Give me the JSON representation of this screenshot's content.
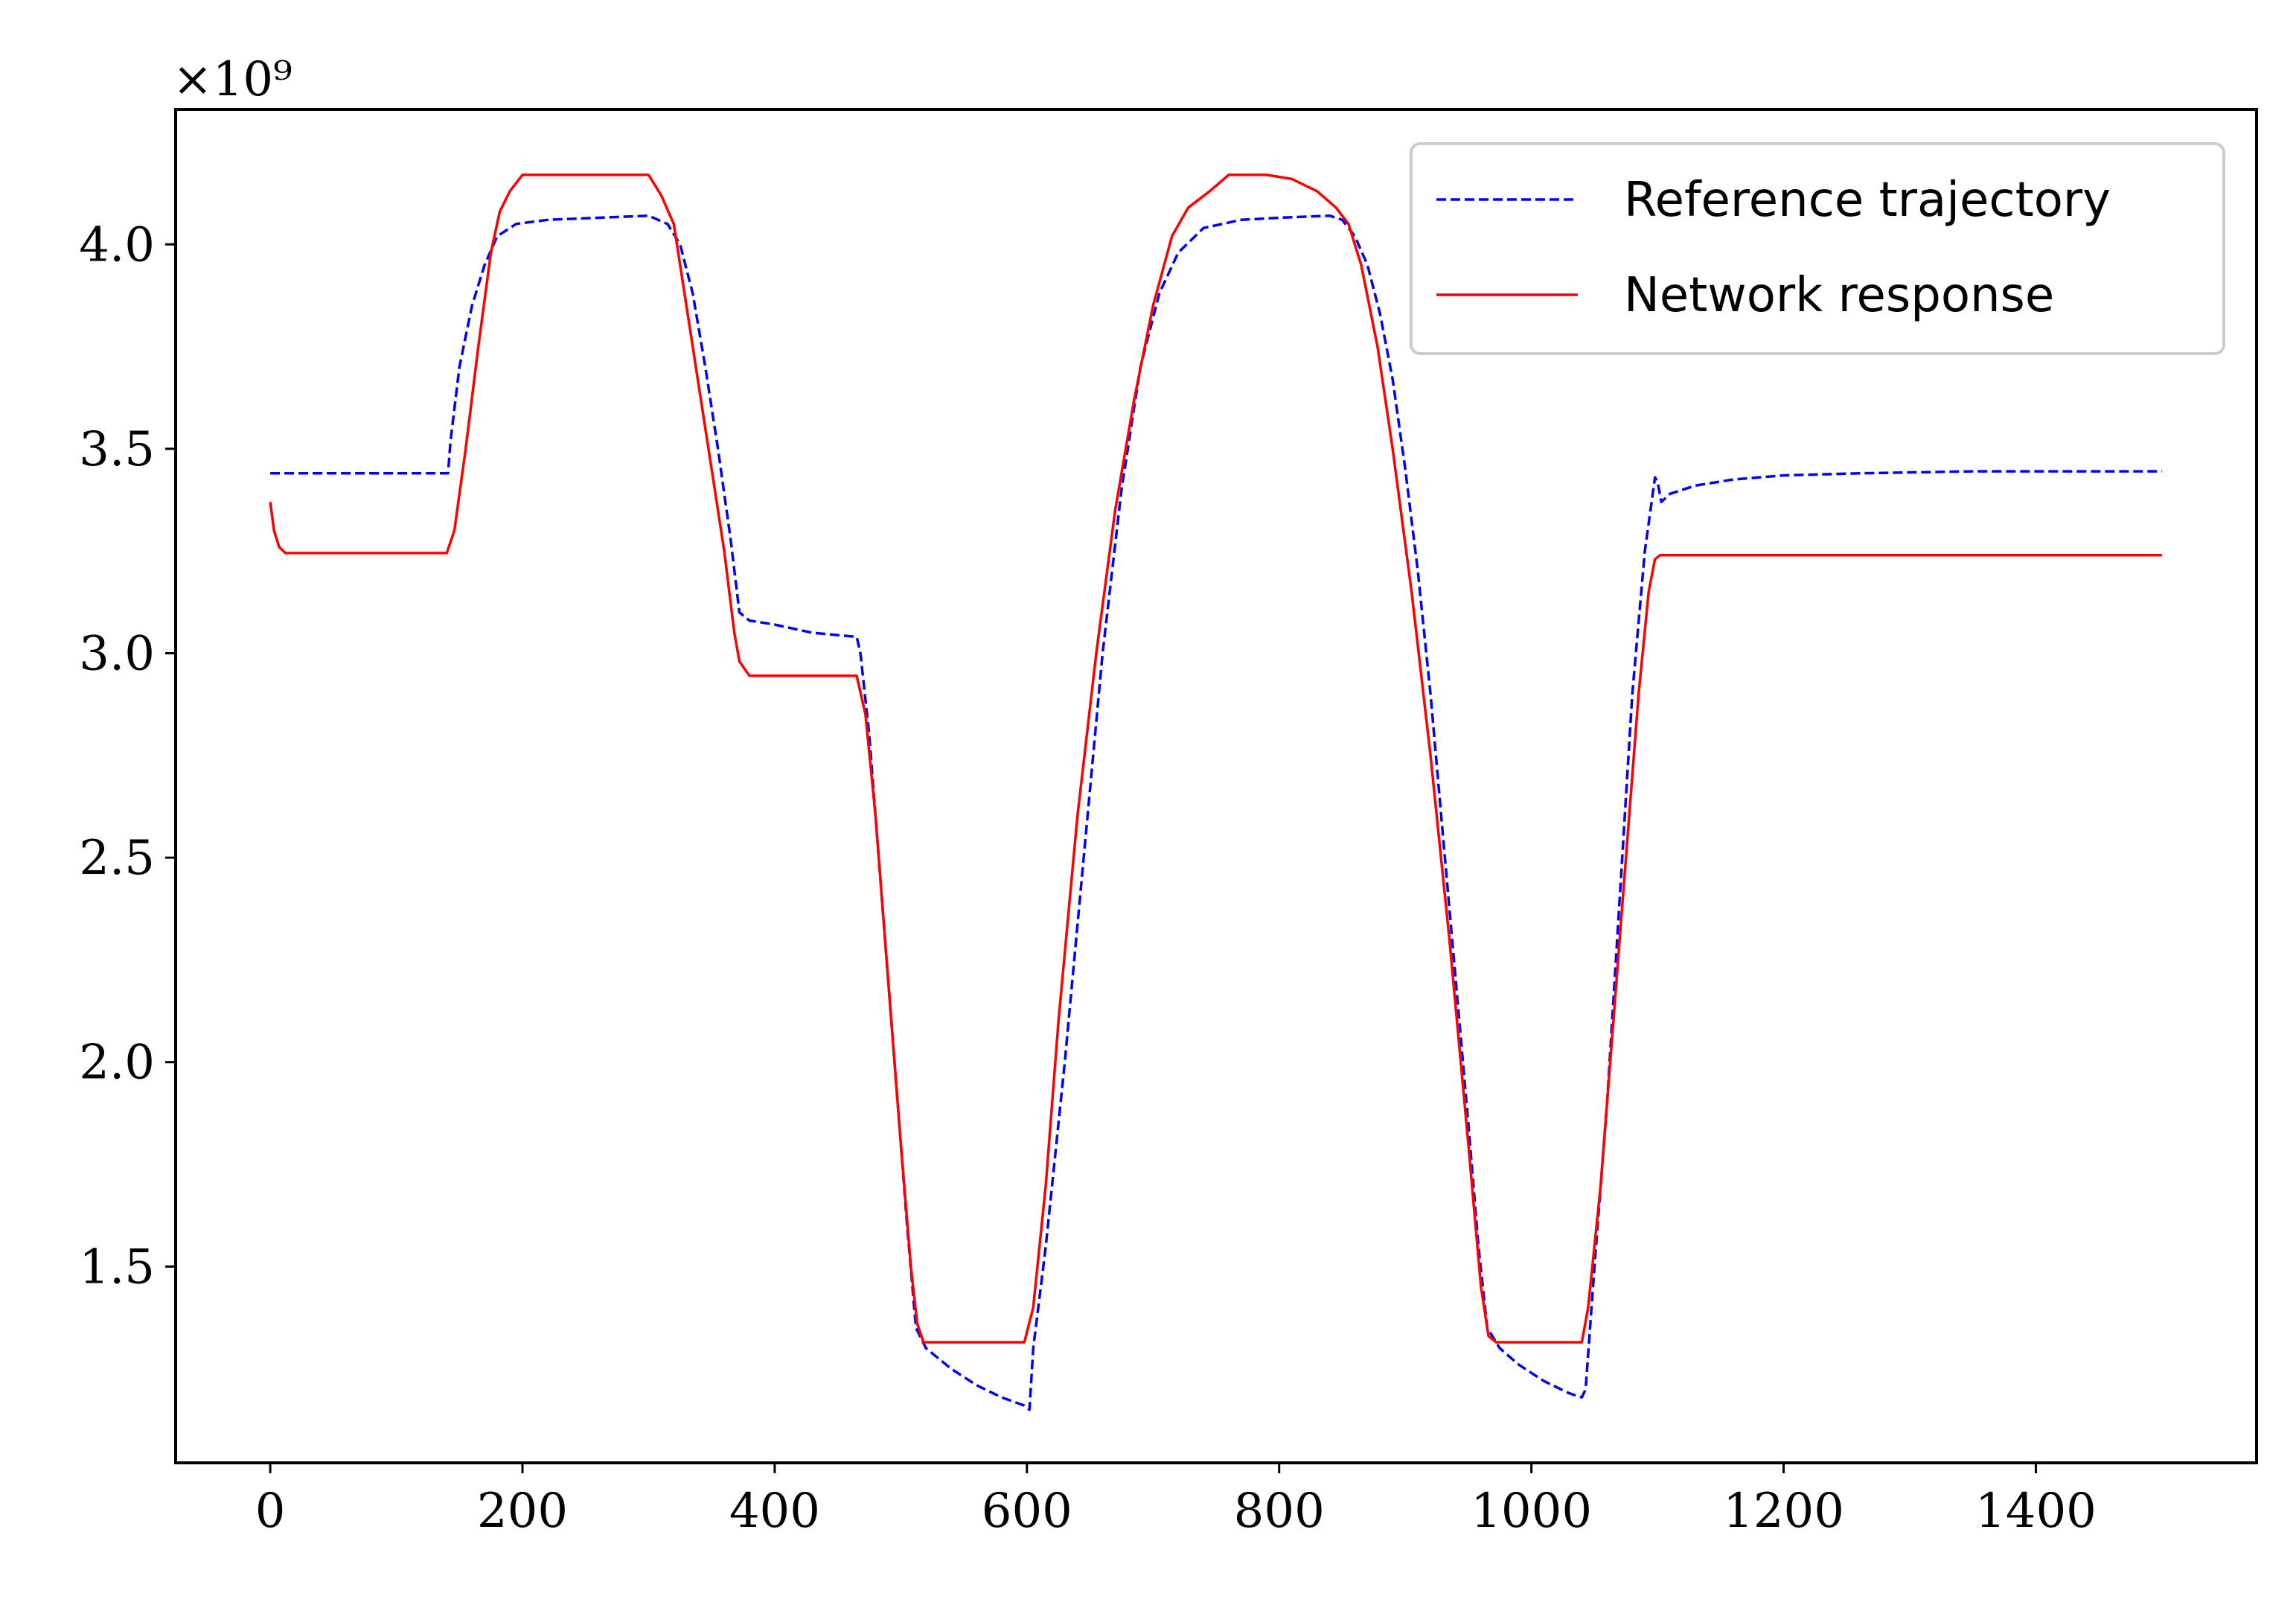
{
  "chart_data": {
    "type": "line",
    "title": "",
    "xlabel": "",
    "ylabel": "",
    "y_offset_label": "×10⁹",
    "xlim": [
      -75,
      1575
    ],
    "ylim": [
      1.02,
      4.33
    ],
    "xticks": [
      0,
      200,
      400,
      600,
      800,
      1000,
      1200,
      1400
    ],
    "xtick_labels": [
      "0",
      "200",
      "400",
      "600",
      "800",
      "1000",
      "1200",
      "1400"
    ],
    "yticks": [
      1.5,
      2.0,
      2.5,
      3.0,
      3.5,
      4.0
    ],
    "ytick_labels": [
      "1.5",
      "2.0",
      "2.5",
      "3.0",
      "3.5",
      "4.0"
    ],
    "grid": false,
    "legend_position": "top-right",
    "series": [
      {
        "name": "Reference trajectory",
        "color": "#0000ff",
        "style": "dashed",
        "points": [
          [
            0,
            3.44
          ],
          [
            141,
            3.44
          ],
          [
            143,
            3.52
          ],
          [
            150,
            3.7
          ],
          [
            160,
            3.85
          ],
          [
            170,
            3.95
          ],
          [
            180,
            4.02
          ],
          [
            195,
            4.05
          ],
          [
            220,
            4.06
          ],
          [
            260,
            4.065
          ],
          [
            300,
            4.07
          ],
          [
            315,
            4.05
          ],
          [
            325,
            4.0
          ],
          [
            335,
            3.88
          ],
          [
            345,
            3.7
          ],
          [
            355,
            3.5
          ],
          [
            365,
            3.28
          ],
          [
            372,
            3.1
          ],
          [
            380,
            3.08
          ],
          [
            400,
            3.07
          ],
          [
            430,
            3.05
          ],
          [
            465,
            3.04
          ],
          [
            468,
            3.0
          ],
          [
            475,
            2.8
          ],
          [
            485,
            2.4
          ],
          [
            495,
            2.0
          ],
          [
            505,
            1.6
          ],
          [
            512,
            1.35
          ],
          [
            520,
            1.3
          ],
          [
            540,
            1.25
          ],
          [
            560,
            1.21
          ],
          [
            580,
            1.18
          ],
          [
            598,
            1.16
          ],
          [
            602,
            1.15
          ],
          [
            605,
            1.3
          ],
          [
            615,
            1.55
          ],
          [
            630,
            2.0
          ],
          [
            645,
            2.5
          ],
          [
            660,
            3.0
          ],
          [
            675,
            3.4
          ],
          [
            690,
            3.7
          ],
          [
            705,
            3.88
          ],
          [
            720,
            3.98
          ],
          [
            740,
            4.04
          ],
          [
            770,
            4.06
          ],
          [
            800,
            4.065
          ],
          [
            840,
            4.07
          ],
          [
            850,
            4.06
          ],
          [
            860,
            4.02
          ],
          [
            870,
            3.95
          ],
          [
            880,
            3.83
          ],
          [
            890,
            3.67
          ],
          [
            900,
            3.45
          ],
          [
            910,
            3.2
          ],
          [
            920,
            2.9
          ],
          [
            930,
            2.55
          ],
          [
            940,
            2.2
          ],
          [
            950,
            1.85
          ],
          [
            958,
            1.55
          ],
          [
            965,
            1.35
          ],
          [
            975,
            1.3
          ],
          [
            990,
            1.26
          ],
          [
            1010,
            1.22
          ],
          [
            1030,
            1.19
          ],
          [
            1040,
            1.18
          ],
          [
            1043,
            1.2
          ],
          [
            1050,
            1.5
          ],
          [
            1060,
            1.9
          ],
          [
            1070,
            2.4
          ],
          [
            1080,
            2.9
          ],
          [
            1090,
            3.25
          ],
          [
            1098,
            3.43
          ],
          [
            1100,
            3.42
          ],
          [
            1103,
            3.37
          ],
          [
            1110,
            3.39
          ],
          [
            1130,
            3.41
          ],
          [
            1160,
            3.425
          ],
          [
            1200,
            3.435
          ],
          [
            1260,
            3.44
          ],
          [
            1350,
            3.445
          ],
          [
            1500,
            3.445
          ]
        ]
      },
      {
        "name": "Network response",
        "color": "#ff0000",
        "style": "solid",
        "points": [
          [
            0,
            3.37
          ],
          [
            3,
            3.3
          ],
          [
            7,
            3.26
          ],
          [
            12,
            3.245
          ],
          [
            140,
            3.245
          ],
          [
            146,
            3.3
          ],
          [
            155,
            3.5
          ],
          [
            165,
            3.75
          ],
          [
            175,
            3.98
          ],
          [
            182,
            4.08
          ],
          [
            190,
            4.13
          ],
          [
            200,
            4.17
          ],
          [
            300,
            4.17
          ],
          [
            310,
            4.12
          ],
          [
            320,
            4.05
          ],
          [
            330,
            3.85
          ],
          [
            340,
            3.65
          ],
          [
            350,
            3.45
          ],
          [
            360,
            3.25
          ],
          [
            368,
            3.05
          ],
          [
            372,
            2.98
          ],
          [
            380,
            2.945
          ],
          [
            465,
            2.945
          ],
          [
            472,
            2.85
          ],
          [
            480,
            2.6
          ],
          [
            490,
            2.2
          ],
          [
            500,
            1.8
          ],
          [
            508,
            1.5
          ],
          [
            513,
            1.36
          ],
          [
            518,
            1.315
          ],
          [
            598,
            1.315
          ],
          [
            605,
            1.4
          ],
          [
            615,
            1.7
          ],
          [
            625,
            2.1
          ],
          [
            640,
            2.6
          ],
          [
            655,
            3.0
          ],
          [
            670,
            3.35
          ],
          [
            685,
            3.62
          ],
          [
            700,
            3.85
          ],
          [
            715,
            4.02
          ],
          [
            728,
            4.09
          ],
          [
            745,
            4.13
          ],
          [
            760,
            4.17
          ],
          [
            790,
            4.17
          ],
          [
            810,
            4.16
          ],
          [
            830,
            4.13
          ],
          [
            845,
            4.09
          ],
          [
            855,
            4.05
          ],
          [
            865,
            3.95
          ],
          [
            878,
            3.75
          ],
          [
            890,
            3.5
          ],
          [
            905,
            3.15
          ],
          [
            920,
            2.75
          ],
          [
            935,
            2.3
          ],
          [
            950,
            1.8
          ],
          [
            960,
            1.45
          ],
          [
            966,
            1.33
          ],
          [
            972,
            1.315
          ],
          [
            1040,
            1.315
          ],
          [
            1045,
            1.4
          ],
          [
            1055,
            1.7
          ],
          [
            1065,
            2.1
          ],
          [
            1075,
            2.5
          ],
          [
            1085,
            2.9
          ],
          [
            1093,
            3.15
          ],
          [
            1098,
            3.23
          ],
          [
            1102,
            3.24
          ],
          [
            1500,
            3.24
          ]
        ]
      }
    ]
  }
}
